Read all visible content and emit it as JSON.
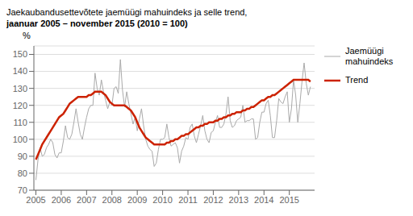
{
  "chart_data": {
    "type": "line",
    "title": "Jaekaubandusettevõtete jaemüügi mahuindeks ja selle trend,",
    "subtitle": "jaanuar 2005 – november 2015 (2010 = 100)",
    "ylabel": "%",
    "xlim": [
      2004.92,
      2015.9966666666667
    ],
    "xticks": [
      2005,
      2006,
      2007,
      2008,
      2009,
      2010,
      2011,
      2012,
      2013,
      2014,
      2015
    ],
    "ylim": [
      70,
      155
    ],
    "yticks": [
      70,
      80,
      90,
      100,
      110,
      120,
      130,
      140,
      150
    ],
    "grid": "y",
    "legend": "right",
    "x": [
      2005,
      2005.0833333333333,
      2005.1666666666667,
      2005.25,
      2005.3333333333333,
      2005.4166666666667,
      2005.5,
      2005.5833333333333,
      2005.6666666666667,
      2005.75,
      2005.8333333333333,
      2005.9166666666667,
      2006,
      2006.0833333333333,
      2006.1666666666667,
      2006.25,
      2006.3333333333333,
      2006.4166666666667,
      2006.5,
      2006.5833333333333,
      2006.6666666666667,
      2006.75,
      2006.8333333333333,
      2006.9166666666667,
      2007,
      2007.0833333333333,
      2007.1666666666667,
      2007.25,
      2007.3333333333333,
      2007.4166666666667,
      2007.5,
      2007.5833333333333,
      2007.6666666666667,
      2007.75,
      2007.8333333333333,
      2007.9166666666667,
      2008,
      2008.0833333333333,
      2008.1666666666667,
      2008.25,
      2008.3333333333333,
      2008.4166666666667,
      2008.5,
      2008.5833333333333,
      2008.6666666666667,
      2008.75,
      2008.8333333333333,
      2008.9166666666667,
      2009,
      2009.0833333333333,
      2009.1666666666667,
      2009.25,
      2009.3333333333333,
      2009.4166666666667,
      2009.5,
      2009.5833333333333,
      2009.6666666666667,
      2009.75,
      2009.8333333333333,
      2009.9166666666667,
      2010,
      2010.0833333333333,
      2010.1666666666667,
      2010.25,
      2010.3333333333333,
      2010.4166666666667,
      2010.5,
      2010.5833333333333,
      2010.6666666666667,
      2010.75,
      2010.8333333333333,
      2010.9166666666667,
      2011,
      2011.0833333333333,
      2011.1666666666667,
      2011.25,
      2011.3333333333333,
      2011.4166666666667,
      2011.5,
      2011.5833333333333,
      2011.6666666666667,
      2011.75,
      2011.8333333333333,
      2011.9166666666667,
      2012,
      2012.0833333333333,
      2012.1666666666667,
      2012.25,
      2012.3333333333333,
      2012.4166666666667,
      2012.5,
      2012.5833333333333,
      2012.6666666666667,
      2012.75,
      2012.8333333333333,
      2012.9166666666667,
      2013,
      2013.0833333333333,
      2013.1666666666667,
      2013.25,
      2013.3333333333333,
      2013.4166666666667,
      2013.5,
      2013.5833333333333,
      2013.6666666666667,
      2013.75,
      2013.8333333333333,
      2013.9166666666667,
      2014,
      2014.0833333333333,
      2014.1666666666667,
      2014.25,
      2014.3333333333333,
      2014.4166666666667,
      2014.5,
      2014.5833333333333,
      2014.6666666666667,
      2014.75,
      2014.8333333333333,
      2014.9166666666667,
      2015,
      2015.0833333333333,
      2015.1666666666667,
      2015.25,
      2015.3333333333333,
      2015.4166666666667,
      2015.5,
      2015.5833333333333,
      2015.6666666666667,
      2015.75,
      2015.8333333333333
    ],
    "series": [
      {
        "name": "Jaemüügi\nmahuindeks",
        "color": "#aaaaaa",
        "values": [
          76,
          88,
          95,
          90,
          91,
          95,
          97,
          100,
          98,
          91,
          89,
          92,
          92,
          99,
          108,
          101,
          100,
          103,
          110,
          118,
          110,
          103,
          100,
          107,
          113,
          118,
          120,
          120,
          139,
          130,
          126,
          135,
          128,
          123,
          118,
          122,
          120,
          130,
          131,
          127,
          147,
          129,
          119,
          128,
          121,
          115,
          109,
          113,
          105,
          112,
          118,
          108,
          100,
          96,
          94,
          93,
          84,
          86,
          94,
          100,
          100,
          101,
          109,
          101,
          96,
          97,
          98,
          95,
          86,
          93,
          96,
          101,
          100,
          107,
          109,
          102,
          98,
          103,
          108,
          114,
          105,
          100,
          98,
          104,
          105,
          110,
          114,
          107,
          107,
          109,
          115,
          125,
          111,
          107,
          108,
          111,
          112,
          113,
          120,
          110,
          111,
          111,
          112,
          112,
          100,
          101,
          110,
          116,
          116,
          121,
          123,
          114,
          101,
          101,
          111,
          124,
          122,
          121,
          125,
          128,
          110,
          118,
          135,
          126,
          110,
          121,
          134,
          145,
          133,
          126,
          131
        ]
      },
      {
        "name": "Trend",
        "color": "#cc2200",
        "values": [
          88,
          91,
          94,
          97,
          99,
          101,
          103,
          105,
          107,
          109,
          111,
          113,
          114,
          115,
          117,
          119,
          121,
          122,
          123,
          124,
          125,
          125,
          125,
          125,
          125,
          126,
          126,
          127,
          128,
          128,
          128,
          128,
          127,
          126,
          124,
          122,
          121,
          120,
          120,
          120,
          120,
          120,
          120,
          119,
          118,
          117,
          115,
          113,
          110,
          107,
          105,
          103,
          101,
          100,
          99,
          98,
          97,
          97,
          97,
          97,
          97,
          97,
          98,
          98,
          99,
          99,
          100,
          100,
          101,
          102,
          102,
          103,
          103,
          104,
          105,
          106,
          107,
          107,
          108,
          108,
          109,
          109,
          110,
          110,
          110,
          111,
          111,
          112,
          112,
          113,
          113,
          114,
          114,
          115,
          115,
          116,
          116,
          116,
          117,
          117,
          118,
          118,
          119,
          119,
          120,
          121,
          122,
          123,
          123,
          124,
          125,
          125,
          126,
          126,
          127,
          128,
          129,
          130,
          131,
          132,
          133,
          134,
          135,
          135,
          135,
          135,
          135,
          135,
          135,
          135,
          134
        ]
      }
    ]
  }
}
